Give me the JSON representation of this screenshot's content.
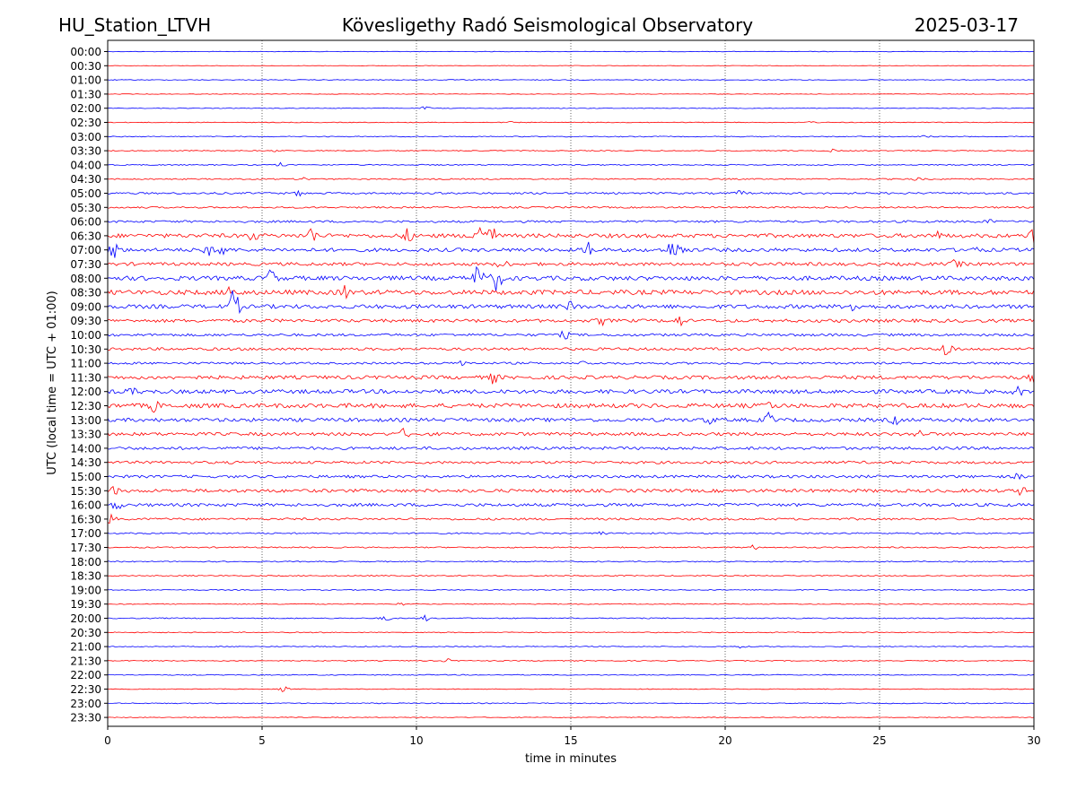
{
  "header": {
    "station": "HU_Station_LTVH",
    "observatory": "Kövesligethy Radó Seismological Observatory",
    "date": "2025-03-17"
  },
  "chart_data": {
    "type": "line",
    "title": "Kövesligethy Radó Seismological Observatory",
    "xlabel": "time in minutes",
    "ylabel": "UTC (local time = UTC + 01:00)",
    "xlim": [
      0,
      30
    ],
    "x_ticks": [
      "0",
      "5",
      "10",
      "15",
      "20",
      "25",
      "30"
    ],
    "grid": "vertical-dotted",
    "trace_colors": [
      "#0000ff",
      "#ff0000"
    ],
    "rows": [
      {
        "label": "00:00",
        "amp": 0.3,
        "events": []
      },
      {
        "label": "00:30",
        "amp": 0.3,
        "events": []
      },
      {
        "label": "01:00",
        "amp": 0.4,
        "events": []
      },
      {
        "label": "01:30",
        "amp": 0.3,
        "events": []
      },
      {
        "label": "02:00",
        "amp": 0.4,
        "events": [
          {
            "t": 10.3,
            "a": 2.0
          }
        ]
      },
      {
        "label": "02:30",
        "amp": 0.4,
        "events": [
          {
            "t": 22.8,
            "a": 1.5
          },
          {
            "t": 13.0,
            "a": 1.0
          }
        ]
      },
      {
        "label": "03:00",
        "amp": 0.5,
        "events": [
          {
            "t": 26.5,
            "a": 1.2
          }
        ]
      },
      {
        "label": "03:30",
        "amp": 0.5,
        "events": [
          {
            "t": 23.5,
            "a": 1.5
          },
          {
            "t": 5.5,
            "a": 1.0
          }
        ]
      },
      {
        "label": "04:00",
        "amp": 0.6,
        "events": [
          {
            "t": 5.6,
            "a": 2.0
          }
        ]
      },
      {
        "label": "04:30",
        "amp": 0.7,
        "events": [
          {
            "t": 6.4,
            "a": 2.0
          },
          {
            "t": 26.2,
            "a": 2.0
          }
        ]
      },
      {
        "label": "05:00",
        "amp": 1.0,
        "events": [
          {
            "t": 6.2,
            "a": 2.5
          },
          {
            "t": 20.5,
            "a": 2.5
          }
        ]
      },
      {
        "label": "05:30",
        "amp": 0.9,
        "events": []
      },
      {
        "label": "06:00",
        "amp": 1.2,
        "events": [
          {
            "t": 28.5,
            "a": 2.5
          }
        ]
      },
      {
        "label": "06:30",
        "amp": 2.2,
        "events": [
          {
            "t": 4.7,
            "a": 6
          },
          {
            "t": 6.6,
            "a": 9
          },
          {
            "t": 9.7,
            "a": 7
          },
          {
            "t": 12.0,
            "a": 20
          },
          {
            "t": 12.4,
            "a": 14
          },
          {
            "t": 26.8,
            "a": 5
          },
          {
            "t": 30.0,
            "a": 12
          }
        ]
      },
      {
        "label": "07:00",
        "amp": 2.0,
        "events": [
          {
            "t": 0.2,
            "a": 12
          },
          {
            "t": 3.2,
            "a": 8
          },
          {
            "t": 3.7,
            "a": 7
          },
          {
            "t": 15.6,
            "a": 9
          },
          {
            "t": 18.2,
            "a": 8
          },
          {
            "t": 18.5,
            "a": 10
          },
          {
            "t": 28.0,
            "a": 4
          }
        ]
      },
      {
        "label": "07:30",
        "amp": 1.8,
        "events": [
          {
            "t": 12.8,
            "a": 6
          },
          {
            "t": 27.5,
            "a": 5
          }
        ]
      },
      {
        "label": "08:00",
        "amp": 2.4,
        "events": [
          {
            "t": 5.3,
            "a": 10
          },
          {
            "t": 12.0,
            "a": 17
          },
          {
            "t": 12.6,
            "a": 14
          }
        ]
      },
      {
        "label": "08:30",
        "amp": 2.6,
        "events": [
          {
            "t": 4.0,
            "a": 9
          },
          {
            "t": 7.7,
            "a": 6
          }
        ]
      },
      {
        "label": "09:00",
        "amp": 2.2,
        "events": [
          {
            "t": 4.1,
            "a": 20
          },
          {
            "t": 15.0,
            "a": 5
          },
          {
            "t": 24.2,
            "a": 6
          }
        ]
      },
      {
        "label": "09:30",
        "amp": 1.8,
        "events": [
          {
            "t": 18.5,
            "a": 6
          },
          {
            "t": 16.0,
            "a": 4
          }
        ]
      },
      {
        "label": "10:00",
        "amp": 1.4,
        "events": [
          {
            "t": 14.8,
            "a": 4
          }
        ]
      },
      {
        "label": "10:30",
        "amp": 1.5,
        "events": [
          {
            "t": 27.2,
            "a": 12
          }
        ]
      },
      {
        "label": "11:00",
        "amp": 1.2,
        "events": [
          {
            "t": 11.5,
            "a": 4
          },
          {
            "t": 15.5,
            "a": 3
          }
        ]
      },
      {
        "label": "11:30",
        "amp": 2.0,
        "events": [
          {
            "t": 12.5,
            "a": 6
          },
          {
            "t": 30.0,
            "a": 5
          }
        ]
      },
      {
        "label": "12:00",
        "amp": 2.2,
        "events": [
          {
            "t": 0.8,
            "a": 4
          },
          {
            "t": 29.5,
            "a": 4
          }
        ]
      },
      {
        "label": "12:30",
        "amp": 2.4,
        "events": [
          {
            "t": 1.5,
            "a": 6
          },
          {
            "t": 21.4,
            "a": 4
          }
        ]
      },
      {
        "label": "13:00",
        "amp": 2.0,
        "events": [
          {
            "t": 21.4,
            "a": 7
          },
          {
            "t": 19.5,
            "a": 4
          },
          {
            "t": 25.5,
            "a": 4
          }
        ]
      },
      {
        "label": "13:30",
        "amp": 1.8,
        "events": [
          {
            "t": 9.6,
            "a": 5
          },
          {
            "t": 26.3,
            "a": 4
          }
        ]
      },
      {
        "label": "14:00",
        "amp": 1.6,
        "events": []
      },
      {
        "label": "14:30",
        "amp": 1.5,
        "events": []
      },
      {
        "label": "15:00",
        "amp": 1.5,
        "events": [
          {
            "t": 29.5,
            "a": 3
          }
        ]
      },
      {
        "label": "15:30",
        "amp": 1.8,
        "events": [
          {
            "t": 0.2,
            "a": 4
          },
          {
            "t": 29.6,
            "a": 4
          }
        ]
      },
      {
        "label": "16:00",
        "amp": 1.7,
        "events": [
          {
            "t": 0.3,
            "a": 5
          }
        ]
      },
      {
        "label": "16:30",
        "amp": 1.2,
        "events": [
          {
            "t": 0.1,
            "a": 5
          }
        ]
      },
      {
        "label": "17:00",
        "amp": 0.8,
        "events": [
          {
            "t": 16.0,
            "a": 2
          }
        ]
      },
      {
        "label": "17:30",
        "amp": 0.7,
        "events": [
          {
            "t": 20.9,
            "a": 2.5
          }
        ]
      },
      {
        "label": "18:00",
        "amp": 0.6,
        "events": []
      },
      {
        "label": "18:30",
        "amp": 0.6,
        "events": []
      },
      {
        "label": "19:00",
        "amp": 0.5,
        "events": []
      },
      {
        "label": "19:30",
        "amp": 0.5,
        "events": [
          {
            "t": 9.5,
            "a": 1.5
          }
        ]
      },
      {
        "label": "20:00",
        "amp": 0.6,
        "events": [
          {
            "t": 9.0,
            "a": 3
          },
          {
            "t": 10.3,
            "a": 3
          }
        ]
      },
      {
        "label": "20:30",
        "amp": 0.5,
        "events": []
      },
      {
        "label": "21:00",
        "amp": 0.5,
        "events": [
          {
            "t": 20.5,
            "a": 1.5
          }
        ]
      },
      {
        "label": "21:30",
        "amp": 0.5,
        "events": [
          {
            "t": 11.0,
            "a": 2
          }
        ]
      },
      {
        "label": "22:00",
        "amp": 0.5,
        "events": []
      },
      {
        "label": "22:30",
        "amp": 0.4,
        "events": [
          {
            "t": 5.7,
            "a": 3
          }
        ]
      },
      {
        "label": "23:00",
        "amp": 0.5,
        "events": []
      },
      {
        "label": "23:30",
        "amp": 0.4,
        "events": []
      }
    ]
  }
}
